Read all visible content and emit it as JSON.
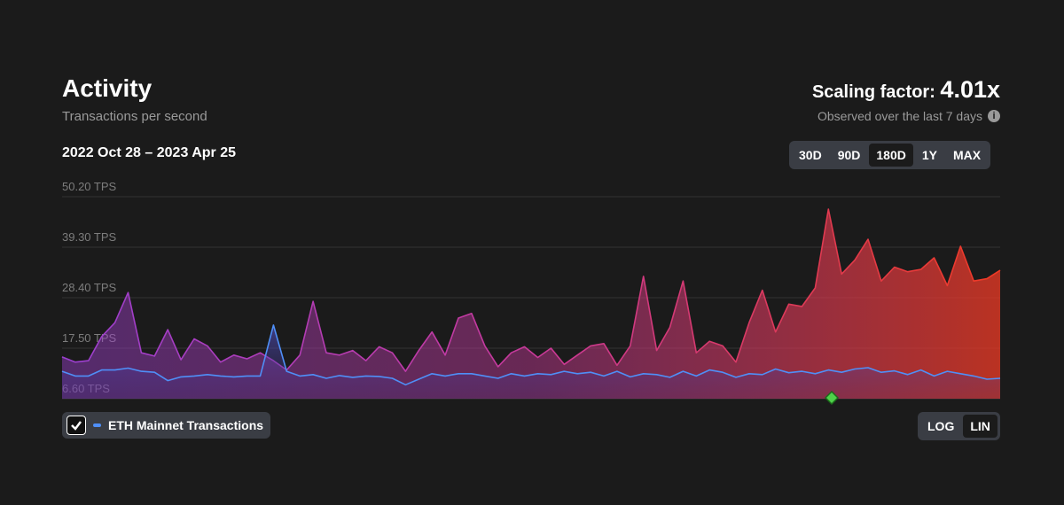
{
  "header": {
    "title": "Activity",
    "subtitle": "Transactions per second",
    "scaling_label": "Scaling factor:",
    "scaling_value": "4.01x",
    "observed": "Observed over the last 7 days",
    "date_range": "2022 Oct 28 – 2023 Apr 25",
    "ranges": [
      "30D",
      "90D",
      "180D",
      "1Y",
      "MAX"
    ],
    "selected_range": 2,
    "scale_options": [
      "LOG",
      "LIN"
    ],
    "selected_scale": 1
  },
  "chart_data": {
    "type": "area",
    "ylim": [
      6.6,
      50.2
    ],
    "yticks": [
      {
        "value": 6.6,
        "label": "6.60 TPS"
      },
      {
        "value": 17.5,
        "label": "17.50 TPS"
      },
      {
        "value": 28.4,
        "label": "28.40 TPS"
      },
      {
        "value": 39.3,
        "label": "39.30 TPS"
      },
      {
        "value": 50.2,
        "label": "50.20 TPS"
      }
    ],
    "grid": true,
    "series": [
      {
        "gradient": [
          "#9b3fd0",
          "#c8399a",
          "#ef3a24"
        ],
        "values": [
          15.6,
          14.5,
          14.8,
          20,
          23,
          29.5,
          16.5,
          15.8,
          21.5,
          15,
          19.5,
          18,
          14.5,
          16,
          15.2,
          16.5,
          14.8,
          12.8,
          16,
          27.6,
          16.5,
          16,
          17,
          14.8,
          17.8,
          16.5,
          12.5,
          17,
          21,
          16,
          24,
          25,
          18,
          13.5,
          16.5,
          17.8,
          15.5,
          17.5,
          14,
          16,
          18,
          18.5,
          13.8,
          18,
          33,
          17,
          22,
          32,
          16.5,
          19,
          18,
          14.5,
          23,
          30,
          21,
          27,
          26.5,
          30.5,
          47.5,
          33.5,
          36.5,
          41,
          32,
          35,
          34,
          34.5,
          37,
          31,
          39.5,
          32,
          32.5,
          34.3
        ]
      },
      {
        "name": "ETH Mainnet Transactions",
        "color": "#4f8ff7",
        "values": [
          12.5,
          11.5,
          11.5,
          12.8,
          12.8,
          13.2,
          12.5,
          12.3,
          10.5,
          11.3,
          11.5,
          11.8,
          11.5,
          11.3,
          11.5,
          11.5,
          22.5,
          12.5,
          11.5,
          11.8,
          11,
          11.6,
          11.2,
          11.5,
          11.4,
          11,
          9.6,
          10.8,
          12,
          11.5,
          12,
          12,
          11.5,
          11,
          12,
          11.5,
          12,
          11.8,
          12.5,
          12,
          12.3,
          11.5,
          12.5,
          11.3,
          12,
          11.8,
          11.2,
          12.5,
          11.5,
          12.8,
          12.3,
          11.2,
          12,
          11.8,
          13,
          12.2,
          12.5,
          12,
          12.8,
          12.3,
          13,
          13.3,
          12.3,
          12.6,
          11.8,
          12.8,
          11.5,
          12.5,
          12,
          11.5,
          10.8,
          11
        ]
      }
    ]
  }
}
